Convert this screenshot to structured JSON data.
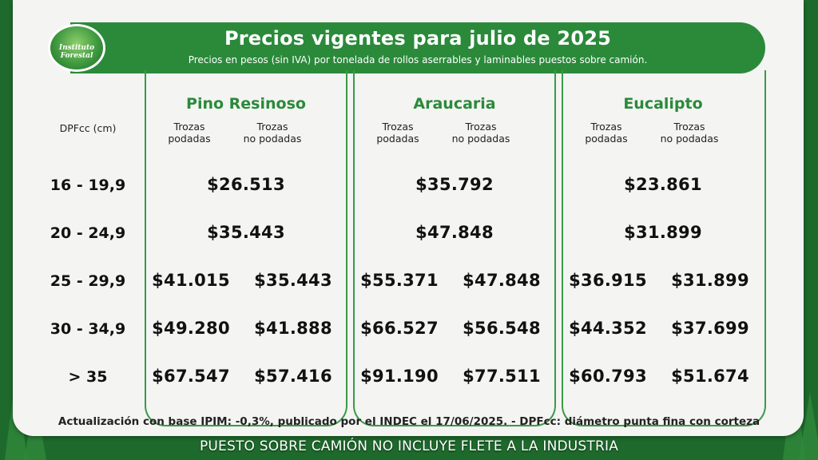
{
  "header": {
    "title": "Precios vigentes para julio de 2025",
    "subtitle": "Precios en pesos (sin IVA) por tonelada de rollos aserrables y laminables puestos sobre camión."
  },
  "logo": {
    "text": "Instituto Forestal"
  },
  "table": {
    "row_header": "DPFcc (cm)",
    "sub_columns": [
      "Trozas\npodadas",
      "Trozas\nno podadas"
    ],
    "species": [
      "Pino Resinoso",
      "Araucaria",
      "Eucalipto"
    ],
    "rows": [
      {
        "range": "16 - 19,9",
        "merged": true,
        "values": [
          [
            "$26.513"
          ],
          [
            "$35.792"
          ],
          [
            "$23.861"
          ]
        ]
      },
      {
        "range": "20 - 24,9",
        "merged": true,
        "values": [
          [
            "$35.443"
          ],
          [
            "$47.848"
          ],
          [
            "$31.899"
          ]
        ]
      },
      {
        "range": "25 - 29,9",
        "merged": false,
        "values": [
          [
            "$41.015",
            "$35.443"
          ],
          [
            "$55.371",
            "$47.848"
          ],
          [
            "$36.915",
            "$31.899"
          ]
        ]
      },
      {
        "range": "30 - 34,9",
        "merged": false,
        "values": [
          [
            "$49.280",
            "$41.888"
          ],
          [
            "$66.527",
            "$56.548"
          ],
          [
            "$44.352",
            "$37.699"
          ]
        ]
      },
      {
        "range": "> 35",
        "merged": false,
        "values": [
          [
            "$67.547",
            "$57.416"
          ],
          [
            "$91.190",
            "$77.511"
          ],
          [
            "$60.793",
            "$51.674"
          ]
        ]
      }
    ]
  },
  "footnote": "Actualización con base IPIM: -0,3%, publicado por el INDEC el 17/06/2025.  -  DPFcc: diámetro punta fina con corteza",
  "footer": "PUESTO SOBRE CAMIÓN NO INCLUYE FLETE A LA INDUSTRIA",
  "colors": {
    "brand_green": "#2a8a3a",
    "panel_border": "#3a9a48",
    "card_bg": "#f4f4f2"
  }
}
